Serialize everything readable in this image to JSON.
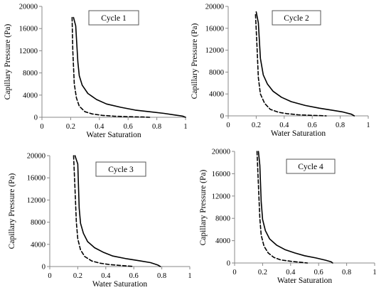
{
  "chart_data": [
    {
      "type": "line",
      "title": "Cycle 1",
      "xlabel": "Water Saturation",
      "ylabel": "Capillary Pressure (Pa)",
      "xlim": [
        0,
        1
      ],
      "ylim": [
        0,
        20000
      ],
      "xticks": [
        "0",
        "0.2",
        "0.4",
        "0.6",
        "0.8",
        "1"
      ],
      "yticks": [
        "0",
        "4000",
        "8000",
        "12000",
        "16000",
        "20000"
      ],
      "grid": false,
      "series": [
        {
          "style": "solid",
          "x": [
            0.22,
            0.235,
            0.25,
            0.26,
            0.28,
            0.32,
            0.38,
            0.45,
            0.55,
            0.65,
            0.75,
            0.85,
            0.93,
            0.98,
            1.0
          ],
          "y": [
            18000,
            16500,
            10000,
            7500,
            5800,
            4300,
            3200,
            2400,
            1800,
            1300,
            1000,
            700,
            400,
            200,
            0
          ]
        },
        {
          "style": "dashed",
          "x": [
            0.21,
            0.215,
            0.225,
            0.24,
            0.26,
            0.3,
            0.35,
            0.42,
            0.5,
            0.6,
            0.7,
            0.75
          ],
          "y": [
            18000,
            12000,
            6000,
            3500,
            2000,
            1000,
            600,
            350,
            200,
            100,
            50,
            0
          ]
        }
      ]
    },
    {
      "type": "line",
      "title": "Cycle 2",
      "xlabel": "Water Saturation",
      "ylabel": "Capillary Pressure (Pa)",
      "xlim": [
        0,
        1
      ],
      "ylim": [
        0,
        20000
      ],
      "xticks": [
        "0",
        "0.2",
        "0.4",
        "0.6",
        "0.8",
        "1"
      ],
      "yticks": [
        "0",
        "4000",
        "8000",
        "12000",
        "16000",
        "20000"
      ],
      "grid": false,
      "series": [
        {
          "style": "solid",
          "x": [
            0.2,
            0.215,
            0.23,
            0.25,
            0.28,
            0.32,
            0.38,
            0.45,
            0.55,
            0.65,
            0.75,
            0.82,
            0.88,
            0.9
          ],
          "y": [
            19000,
            17000,
            10500,
            7500,
            5800,
            4500,
            3400,
            2600,
            1900,
            1400,
            1000,
            700,
            300,
            0
          ]
        },
        {
          "style": "dashed",
          "x": [
            0.195,
            0.205,
            0.215,
            0.23,
            0.26,
            0.3,
            0.36,
            0.42,
            0.5,
            0.58,
            0.65,
            0.7
          ],
          "y": [
            18500,
            13000,
            7000,
            4000,
            2300,
            1200,
            650,
            400,
            200,
            100,
            50,
            0
          ]
        }
      ]
    },
    {
      "type": "line",
      "title": "Cycle 3",
      "xlabel": "Water Saturation",
      "ylabel": "Capillary Pressure (Pa)",
      "xlim": [
        0,
        1
      ],
      "ylim": [
        0,
        20000
      ],
      "xticks": [
        "0",
        "0.2",
        "0.4",
        "0.6",
        "0.8",
        "1"
      ],
      "yticks": [
        "0",
        "4000",
        "8000",
        "12000",
        "16000",
        "20000"
      ],
      "grid": false,
      "series": [
        {
          "style": "solid",
          "x": [
            0.18,
            0.2,
            0.21,
            0.22,
            0.24,
            0.27,
            0.32,
            0.38,
            0.45,
            0.55,
            0.65,
            0.72,
            0.77,
            0.79
          ],
          "y": [
            20000,
            18500,
            10500,
            7800,
            6000,
            4500,
            3400,
            2600,
            1900,
            1400,
            1000,
            700,
            300,
            0
          ]
        },
        {
          "style": "dashed",
          "x": [
            0.17,
            0.18,
            0.19,
            0.2,
            0.22,
            0.25,
            0.3,
            0.36,
            0.43,
            0.5,
            0.57,
            0.6
          ],
          "y": [
            20000,
            14000,
            8000,
            5000,
            3000,
            1800,
            1000,
            600,
            350,
            200,
            80,
            0
          ]
        }
      ]
    },
    {
      "type": "line",
      "title": "Cycle 4",
      "xlabel": "Water Saturation",
      "ylabel": "Capillary Pressure (Pa)",
      "xlim": [
        0,
        1
      ],
      "ylim": [
        0,
        20000
      ],
      "xticks": [
        "0",
        "0.2",
        "0.4",
        "0.6",
        "0.8",
        "1"
      ],
      "yticks": [
        "0",
        "4000",
        "8000",
        "12000",
        "16000",
        "20000"
      ],
      "grid": false,
      "series": [
        {
          "style": "solid",
          "x": [
            0.17,
            0.18,
            0.19,
            0.2,
            0.22,
            0.25,
            0.3,
            0.36,
            0.43,
            0.5,
            0.58,
            0.65,
            0.69,
            0.7
          ],
          "y": [
            20000,
            17500,
            11000,
            7800,
            5800,
            4300,
            3200,
            2400,
            1800,
            1300,
            900,
            500,
            200,
            0
          ]
        },
        {
          "style": "dashed",
          "x": [
            0.16,
            0.17,
            0.18,
            0.19,
            0.21,
            0.24,
            0.28,
            0.33,
            0.4,
            0.46,
            0.5,
            0.52
          ],
          "y": [
            20000,
            14000,
            8000,
            5000,
            3000,
            1800,
            1000,
            550,
            300,
            150,
            50,
            0
          ]
        }
      ]
    }
  ]
}
